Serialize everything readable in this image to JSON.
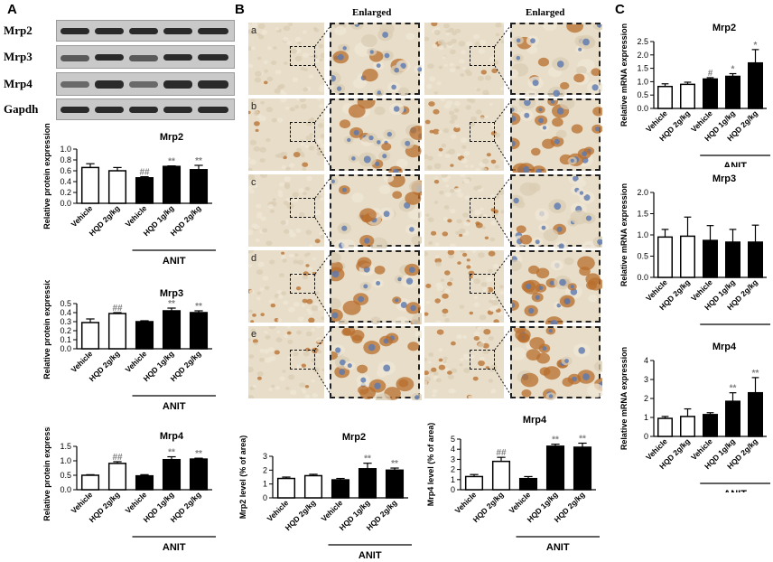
{
  "panels": {
    "A": "A",
    "B": "B",
    "C": "C"
  },
  "blot": {
    "labels": [
      "Mrp2",
      "Mrp3",
      "Mrp4",
      "Gapdh"
    ]
  },
  "histology": {
    "enlarged_label": "Enlarged",
    "row_letters": [
      "a",
      "b",
      "c",
      "d",
      "e"
    ]
  },
  "colors": {
    "open_bar": "#ffffff",
    "filled_bar": "#000000",
    "sig_marker": "#7f7f7f",
    "tissue": "#e8ddc8",
    "stain": "#b86d2c",
    "nucleus": "#5a78b0"
  },
  "chart_data": [
    {
      "id": "A1",
      "type": "bar",
      "title": "Mrp2",
      "ylabel": "Relative protein expression",
      "categories": [
        "Vehicle",
        "HQD 2g/kg",
        "Vehicle",
        "HQD 1g/kg",
        "HQD 2g/kg"
      ],
      "values": [
        0.66,
        0.6,
        0.47,
        0.68,
        0.62
      ],
      "errors": [
        0.07,
        0.06,
        0.02,
        0.01,
        0.08
      ],
      "filled": [
        false,
        false,
        true,
        true,
        true
      ],
      "annotations": [
        "",
        "",
        "##",
        "**",
        "**"
      ],
      "ylim": [
        0,
        1.0
      ],
      "yticks": [
        0.0,
        0.2,
        0.4,
        0.6,
        0.8,
        1.0
      ],
      "group_label": "ANIT"
    },
    {
      "id": "A2",
      "type": "bar",
      "title": "Mrp3",
      "ylabel": "Relative protein expression",
      "categories": [
        "Vehicle",
        "HQD 2g/kg",
        "Vehicle",
        "HQD 1g/kg",
        "HQD 2g/kg"
      ],
      "values": [
        0.29,
        0.39,
        0.3,
        0.42,
        0.4
      ],
      "errors": [
        0.04,
        0.01,
        0.01,
        0.03,
        0.02
      ],
      "filled": [
        false,
        false,
        true,
        true,
        true
      ],
      "annotations": [
        "",
        "##",
        "",
        "**",
        "**"
      ],
      "ylim": [
        0,
        0.5
      ],
      "yticks": [
        0.0,
        0.1,
        0.2,
        0.3,
        0.4,
        0.5
      ],
      "group_label": "ANIT"
    },
    {
      "id": "A3",
      "type": "bar",
      "title": "Mrp4",
      "ylabel": "Relative protein expression",
      "categories": [
        "Vehicle",
        "HQD 2g/kg",
        "Vehicle",
        "HQD 1g/kg",
        "HQD 2g/kg"
      ],
      "values": [
        0.5,
        0.91,
        0.48,
        1.04,
        1.06
      ],
      "errors": [
        0.02,
        0.06,
        0.04,
        0.1,
        0.03
      ],
      "filled": [
        false,
        false,
        true,
        true,
        true
      ],
      "annotations": [
        "",
        "##",
        "",
        "**",
        "**"
      ],
      "ylim": [
        0,
        1.5
      ],
      "yticks": [
        0.0,
        0.5,
        1.0,
        1.5
      ],
      "group_label": "ANIT"
    },
    {
      "id": "B1",
      "type": "bar",
      "title": "Mrp2",
      "ylabel": "Mrp2 level (% of area)",
      "categories": [
        "Vehicle",
        "HQD 2g/kg",
        "Vehicle",
        "HQD 1g/kg",
        "HQD 2g/kg"
      ],
      "values": [
        1.4,
        1.6,
        1.3,
        2.1,
        2.0
      ],
      "errors": [
        0.1,
        0.1,
        0.1,
        0.4,
        0.15
      ],
      "filled": [
        false,
        false,
        true,
        true,
        true
      ],
      "annotations": [
        "",
        "",
        "",
        "**",
        "**"
      ],
      "ylim": [
        0,
        3
      ],
      "yticks": [
        0,
        1,
        2,
        3
      ],
      "group_label": "ANIT"
    },
    {
      "id": "B2",
      "type": "bar",
      "title": "Mrp4",
      "ylabel": "Mrp4 level (% of area)",
      "categories": [
        "Vehicle",
        "HQD 2g/kg",
        "Vehicle",
        "HQD 1g/kg",
        "HQD 2g/kg"
      ],
      "values": [
        1.3,
        2.8,
        1.1,
        4.3,
        4.2
      ],
      "errors": [
        0.2,
        0.4,
        0.2,
        0.2,
        0.4
      ],
      "filled": [
        false,
        false,
        true,
        true,
        true
      ],
      "annotations": [
        "",
        "##",
        "",
        "**",
        "**"
      ],
      "ylim": [
        0,
        5
      ],
      "yticks": [
        0,
        1,
        2,
        3,
        4,
        5
      ],
      "group_label": "ANIT"
    },
    {
      "id": "C1",
      "type": "bar",
      "title": "Mrp2",
      "ylabel": "Relative mRNA expression",
      "categories": [
        "Vehicle",
        "HQD 2g/kg",
        "Vehicle",
        "HQD 1g/kg",
        "HQD 2g/kg"
      ],
      "values": [
        0.82,
        0.9,
        1.1,
        1.2,
        1.7
      ],
      "errors": [
        0.1,
        0.08,
        0.05,
        0.1,
        0.5
      ],
      "filled": [
        false,
        false,
        true,
        true,
        true
      ],
      "annotations": [
        "",
        "",
        "#",
        "*",
        "*"
      ],
      "ylim": [
        0,
        2.5
      ],
      "yticks": [
        0.0,
        0.5,
        1.0,
        1.5,
        2.0,
        2.5
      ],
      "group_label": "ANIT"
    },
    {
      "id": "C2",
      "type": "bar",
      "title": "Mrp3",
      "ylabel": "Relative mRNA expression",
      "categories": [
        "Vehicle",
        "HQD 2g/kg",
        "Vehicle",
        "HQD 1g/kg",
        "HQD 2g/kg"
      ],
      "values": [
        0.95,
        0.97,
        0.87,
        0.83,
        0.83
      ],
      "errors": [
        0.18,
        0.45,
        0.35,
        0.3,
        0.4
      ],
      "filled": [
        false,
        false,
        true,
        true,
        true
      ],
      "annotations": [
        "",
        "",
        "",
        "",
        ""
      ],
      "ylim": [
        0,
        2.0
      ],
      "yticks": [
        0.0,
        0.5,
        1.0,
        1.5,
        2.0
      ],
      "group_label": "ANIT"
    },
    {
      "id": "C3",
      "type": "bar",
      "title": "Mrp4",
      "ylabel": "Relative mRNA expression",
      "categories": [
        "Vehicle",
        "HQD 2g/kg",
        "Vehicle",
        "HQD 1g/kg",
        "HQD 2g/kg"
      ],
      "values": [
        0.95,
        1.05,
        1.15,
        1.85,
        2.3
      ],
      "errors": [
        0.1,
        0.4,
        0.1,
        0.45,
        0.8
      ],
      "filled": [
        false,
        false,
        true,
        true,
        true
      ],
      "annotations": [
        "",
        "",
        "",
        "**",
        "**"
      ],
      "ylim": [
        0,
        4
      ],
      "yticks": [
        0,
        1,
        2,
        3,
        4
      ],
      "group_label": "ANIT"
    }
  ]
}
